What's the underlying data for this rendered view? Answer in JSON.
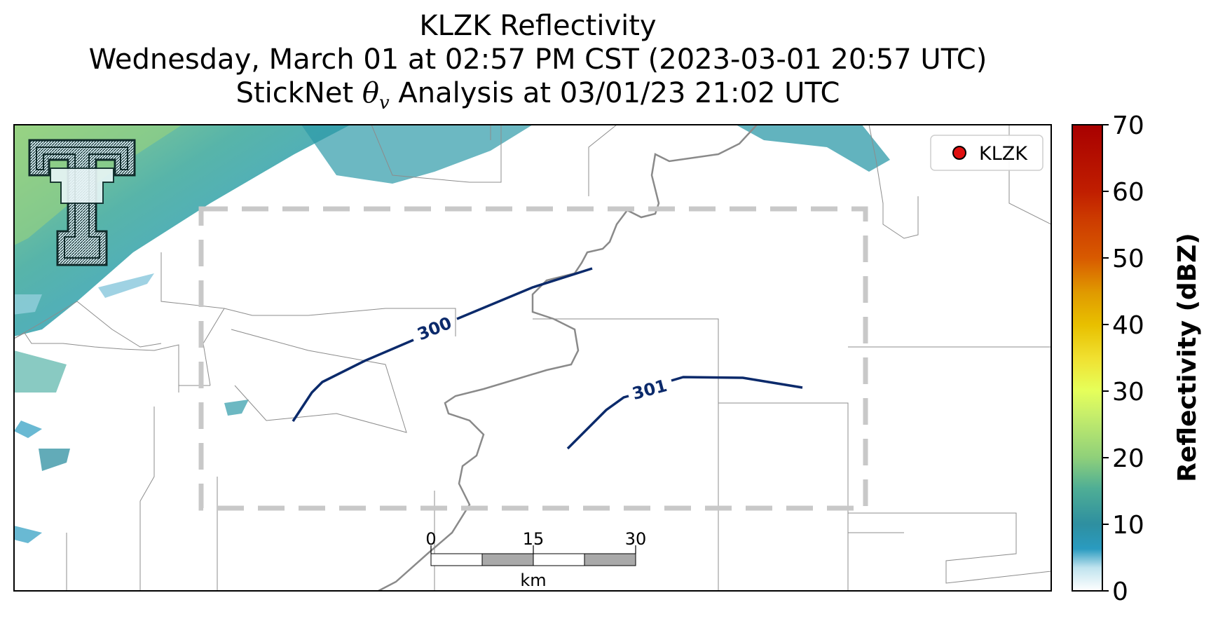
{
  "title": {
    "line1": "KLZK Reflectivity",
    "line2": "Wednesday, March 01 at 02:57 PM CST (2023-03-01 20:57 UTC)",
    "line3_prefix": "StickNet ",
    "line3_symbol": "θ",
    "line3_subscript": "v",
    "line3_suffix": " Analysis at 03/01/23 21:02 UTC"
  },
  "legend": {
    "label": "KLZK",
    "marker_color": "#e01010"
  },
  "logo": {
    "name": "texas-tech-double-t-logo"
  },
  "contours": [
    {
      "level": "300",
      "color": "#0b2a6b"
    },
    {
      "level": "301",
      "color": "#0b2a6b"
    }
  ],
  "scale_bar": {
    "ticks": [
      "0",
      "15",
      "30"
    ],
    "unit": "km"
  },
  "colorbar": {
    "label": "Reflectivity (dBZ)",
    "min": 0,
    "max": 70,
    "ticks": [
      "0",
      "10",
      "20",
      "30",
      "40",
      "50",
      "60",
      "70"
    ],
    "colors": {
      "0": "#ffffff",
      "5": "#2a9bc0",
      "10": "#2e8fa0",
      "20": "#8fd07a",
      "30": "#e6ff5a",
      "40": "#e8c000",
      "50": "#d85a00",
      "60": "#c01e00",
      "70": "#a80000"
    }
  },
  "colors": {
    "contour": "#0b2a6b",
    "river": "#8a8a8a",
    "analysis_box": "#c8c8c8",
    "county_lines": "#8c8c8c"
  }
}
